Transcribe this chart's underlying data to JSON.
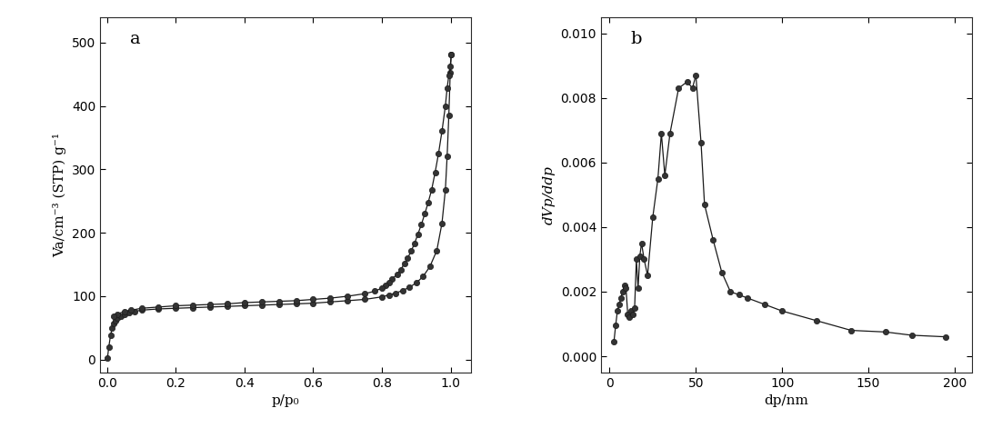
{
  "plot_a": {
    "label": "a",
    "xlabel": "p/p₀",
    "ylabel": "Va/cm⁻³ (STP) g⁻¹",
    "xlim": [
      -0.02,
      1.06
    ],
    "ylim": [
      -20,
      540
    ],
    "yticks": [
      0,
      100,
      200,
      300,
      400,
      500
    ],
    "xticks": [
      0.0,
      0.2,
      0.4,
      0.6,
      0.8,
      1.0
    ],
    "adsorption_x": [
      0.001,
      0.005,
      0.01,
      0.015,
      0.02,
      0.025,
      0.03,
      0.04,
      0.05,
      0.065,
      0.08,
      0.1,
      0.15,
      0.2,
      0.25,
      0.3,
      0.35,
      0.4,
      0.45,
      0.5,
      0.55,
      0.6,
      0.65,
      0.7,
      0.75,
      0.8,
      0.82,
      0.84,
      0.86,
      0.88,
      0.9,
      0.92,
      0.94,
      0.96,
      0.975,
      0.985,
      0.99,
      0.995,
      0.999,
      1.002
    ],
    "adsorption_y": [
      2,
      20,
      38,
      50,
      57,
      62,
      65,
      69,
      71,
      74,
      76,
      78,
      80,
      81,
      82,
      83,
      84,
      85,
      86,
      87,
      88,
      89,
      91,
      93,
      95,
      99,
      102,
      105,
      109,
      114,
      121,
      131,
      147,
      172,
      215,
      268,
      320,
      385,
      452,
      481
    ],
    "desorption_x": [
      1.002,
      0.999,
      0.995,
      0.99,
      0.985,
      0.975,
      0.965,
      0.955,
      0.945,
      0.935,
      0.925,
      0.915,
      0.905,
      0.895,
      0.885,
      0.875,
      0.865,
      0.855,
      0.845,
      0.83,
      0.82,
      0.81,
      0.8,
      0.78,
      0.75,
      0.7,
      0.65,
      0.6,
      0.55,
      0.5,
      0.45,
      0.4,
      0.35,
      0.3,
      0.25,
      0.2,
      0.15,
      0.1,
      0.07,
      0.05,
      0.03,
      0.02
    ],
    "desorption_y": [
      481,
      462,
      448,
      428,
      400,
      360,
      325,
      295,
      268,
      248,
      230,
      213,
      198,
      183,
      171,
      160,
      151,
      142,
      135,
      127,
      122,
      117,
      113,
      108,
      104,
      100,
      97,
      95,
      93,
      92,
      91,
      90,
      88,
      87,
      86,
      85,
      83,
      81,
      78,
      76,
      72,
      68
    ]
  },
  "plot_b": {
    "label": "b",
    "xlabel": "dp/nm",
    "ylabel": "dVp/ddp",
    "xlim": [
      -5,
      210
    ],
    "ylim": [
      -0.0005,
      0.0105
    ],
    "yticks": [
      0.0,
      0.002,
      0.004,
      0.006,
      0.008,
      0.01
    ],
    "xticks": [
      0,
      50,
      100,
      150,
      200
    ],
    "x": [
      2.5,
      3.5,
      4.5,
      5.5,
      6.5,
      7.5,
      8.5,
      9.5,
      10.5,
      11.5,
      12.5,
      13.5,
      14.5,
      15.5,
      16.5,
      17.5,
      18.5,
      20.0,
      22.0,
      25.0,
      28.0,
      30.0,
      32.0,
      35.0,
      40.0,
      45.0,
      48.0,
      50.0,
      53.0,
      55.0,
      60.0,
      65.0,
      70.0,
      75.0,
      80.0,
      90.0,
      100.0,
      120.0,
      140.0,
      160.0,
      175.0,
      195.0
    ],
    "y": [
      0.00045,
      0.00095,
      0.0014,
      0.0016,
      0.0018,
      0.002,
      0.0022,
      0.0021,
      0.0013,
      0.0012,
      0.0014,
      0.0013,
      0.0015,
      0.003,
      0.0021,
      0.0031,
      0.0035,
      0.003,
      0.0025,
      0.0043,
      0.0055,
      0.0069,
      0.0056,
      0.0069,
      0.0083,
      0.0085,
      0.0083,
      0.0087,
      0.0066,
      0.0047,
      0.0036,
      0.0026,
      0.002,
      0.0019,
      0.0018,
      0.0016,
      0.0014,
      0.0011,
      0.0008,
      0.00075,
      0.00065,
      0.0006
    ]
  },
  "line_color": "#1a1a1a",
  "marker_facecolor": "#333333",
  "marker_edgecolor": "#1a1a1a",
  "marker_size": 4.5,
  "line_width": 0.9,
  "bg_color": "#ffffff",
  "tick_fontsize": 10,
  "label_fontsize": 11,
  "panel_label_fontsize": 14
}
